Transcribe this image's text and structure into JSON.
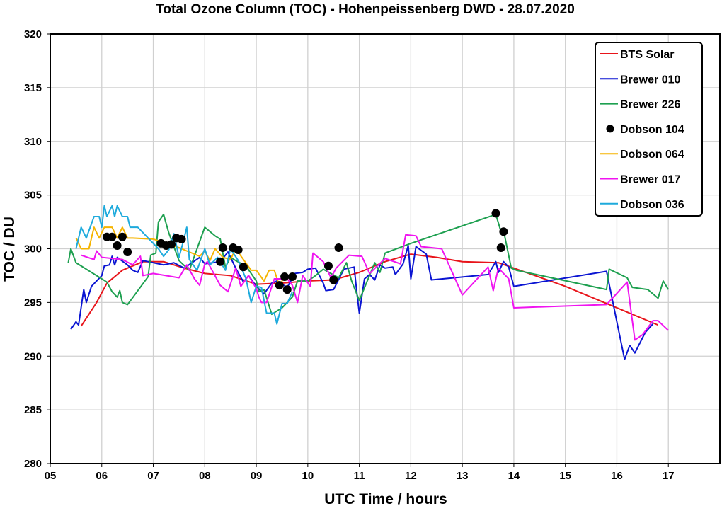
{
  "chart_data": {
    "type": "line",
    "title": "Total Ozone Column (TOC) - Hohenpeissenberg DWD - 28.07.2020",
    "xlabel": "UTC Time / hours",
    "ylabel": "TOC / DU",
    "xlim": [
      5,
      18
    ],
    "ylim": [
      280,
      320
    ],
    "xticks": [
      "05",
      "06",
      "07",
      "08",
      "09",
      "10",
      "11",
      "12",
      "13",
      "14",
      "15",
      "16",
      "17"
    ],
    "yticks": [
      "280",
      "285",
      "290",
      "295",
      "300",
      "305",
      "310",
      "315",
      "320"
    ],
    "grid": true,
    "legend_position": "top-right",
    "series": [
      {
        "name": "BTS Solar",
        "color": "#e8141a",
        "style": "line",
        "points": [
          [
            5.6,
            292.8
          ],
          [
            5.9,
            295
          ],
          [
            6.1,
            296.8
          ],
          [
            6.4,
            298
          ],
          [
            6.8,
            298.8
          ],
          [
            7.2,
            298.8
          ],
          [
            7.6,
            298.2
          ],
          [
            8.0,
            297.7
          ],
          [
            8.5,
            297.5
          ],
          [
            9.0,
            296.7
          ],
          [
            9.5,
            296.8
          ],
          [
            10.0,
            297.0
          ],
          [
            10.5,
            297.1
          ],
          [
            11.0,
            297.8
          ],
          [
            11.5,
            298.8
          ],
          [
            12.0,
            299.5
          ],
          [
            12.5,
            299.2
          ],
          [
            13.0,
            298.8
          ],
          [
            13.7,
            298.7
          ],
          [
            14.0,
            298.2
          ],
          [
            15.0,
            296.5
          ],
          [
            16.0,
            294.5
          ],
          [
            16.8,
            292.9
          ]
        ]
      },
      {
        "name": "Brewer 010",
        "color": "#0a14d2",
        "style": "line",
        "points": [
          [
            5.4,
            292.5
          ],
          [
            5.5,
            293.2
          ],
          [
            5.55,
            292.9
          ],
          [
            5.65,
            296.2
          ],
          [
            5.7,
            295
          ],
          [
            5.8,
            296.5
          ],
          [
            6.0,
            297.5
          ],
          [
            6.05,
            298.4
          ],
          [
            6.15,
            298.5
          ],
          [
            6.2,
            299.3
          ],
          [
            6.25,
            298.5
          ],
          [
            6.3,
            299.2
          ],
          [
            6.5,
            298.5
          ],
          [
            6.6,
            298
          ],
          [
            6.7,
            297.8
          ],
          [
            6.8,
            298.9
          ],
          [
            7.2,
            298.5
          ],
          [
            7.4,
            298.7
          ],
          [
            7.6,
            298.2
          ],
          [
            7.9,
            299.2
          ],
          [
            8.0,
            298.6
          ],
          [
            8.3,
            298.8
          ],
          [
            8.45,
            299.7
          ],
          [
            8.6,
            298.2
          ],
          [
            8.75,
            296.9
          ],
          [
            8.85,
            297.5
          ],
          [
            9.0,
            296.5
          ],
          [
            9.15,
            295.8
          ],
          [
            9.3,
            296.8
          ],
          [
            9.4,
            297
          ],
          [
            9.6,
            296.4
          ],
          [
            9.75,
            297.7
          ],
          [
            9.9,
            297.8
          ],
          [
            10.0,
            298.1
          ],
          [
            10.15,
            298.2
          ],
          [
            10.3,
            296.8
          ],
          [
            10.35,
            296.1
          ],
          [
            10.5,
            296.2
          ],
          [
            10.7,
            298.1
          ],
          [
            10.9,
            298.3
          ],
          [
            10.95,
            296
          ],
          [
            11.0,
            294
          ],
          [
            11.1,
            297.2
          ],
          [
            11.2,
            297.6
          ],
          [
            11.3,
            297.1
          ],
          [
            11.4,
            298.5
          ],
          [
            11.5,
            298.2
          ],
          [
            11.65,
            298.3
          ],
          [
            11.7,
            297.6
          ],
          [
            11.85,
            298.6
          ],
          [
            11.95,
            300.3
          ],
          [
            12.0,
            297.2
          ],
          [
            12.1,
            300.2
          ],
          [
            12.3,
            299.5
          ],
          [
            12.4,
            297.1
          ],
          [
            13.5,
            297.6
          ],
          [
            13.65,
            298.8
          ],
          [
            13.7,
            297.8
          ],
          [
            13.8,
            298.8
          ],
          [
            13.9,
            298.3
          ],
          [
            14.0,
            296.5
          ],
          [
            15.8,
            297.9
          ],
          [
            16.0,
            293.2
          ],
          [
            16.15,
            289.7
          ],
          [
            16.25,
            291
          ],
          [
            16.35,
            290.3
          ],
          [
            16.55,
            292.2
          ],
          [
            16.7,
            293
          ]
        ]
      },
      {
        "name": "Brewer 226",
        "color": "#1ea050",
        "style": "line",
        "points": [
          [
            5.35,
            298.7
          ],
          [
            5.4,
            300
          ],
          [
            5.5,
            298.7
          ],
          [
            5.8,
            297.8
          ],
          [
            6.1,
            296.9
          ],
          [
            6.2,
            296
          ],
          [
            6.3,
            295.5
          ],
          [
            6.35,
            296.1
          ],
          [
            6.4,
            295
          ],
          [
            6.5,
            294.8
          ],
          [
            6.9,
            297.4
          ],
          [
            6.95,
            299.4
          ],
          [
            7.05,
            299.6
          ],
          [
            7.1,
            302.5
          ],
          [
            7.2,
            303.2
          ],
          [
            7.3,
            301.5
          ],
          [
            7.5,
            298.9
          ],
          [
            7.7,
            298
          ],
          [
            8.0,
            302
          ],
          [
            8.2,
            301.2
          ],
          [
            8.3,
            300.9
          ],
          [
            8.4,
            298.3
          ],
          [
            8.5,
            299.2
          ],
          [
            8.6,
            298.9
          ],
          [
            8.8,
            298.4
          ],
          [
            9.0,
            297
          ],
          [
            9.05,
            296
          ],
          [
            9.15,
            296.2
          ],
          [
            9.3,
            293.9
          ],
          [
            9.5,
            294.5
          ],
          [
            9.7,
            295.5
          ],
          [
            9.8,
            297
          ],
          [
            10.0,
            297
          ],
          [
            10.15,
            297.5
          ],
          [
            10.3,
            298.1
          ],
          [
            10.6,
            297.3
          ],
          [
            10.75,
            298.7
          ],
          [
            10.85,
            297
          ],
          [
            11.0,
            295.2
          ],
          [
            11.3,
            298.7
          ],
          [
            11.4,
            297.8
          ],
          [
            11.5,
            299.6
          ],
          [
            12.0,
            300.5
          ],
          [
            13.65,
            303.2
          ],
          [
            13.75,
            301.6
          ],
          [
            13.8,
            301.7
          ],
          [
            13.95,
            298.2
          ],
          [
            14.05,
            298
          ],
          [
            15.8,
            296.2
          ],
          [
            15.85,
            298.1
          ],
          [
            16.2,
            297.3
          ],
          [
            16.3,
            296.4
          ],
          [
            16.6,
            296.2
          ],
          [
            16.8,
            295.4
          ],
          [
            16.9,
            297.0
          ],
          [
            17.0,
            296.2
          ]
        ]
      },
      {
        "name": "Dobson 104",
        "color": "#000000",
        "style": "marker",
        "points": [
          [
            6.1,
            301.1
          ],
          [
            6.2,
            301.1
          ],
          [
            6.3,
            300.3
          ],
          [
            6.4,
            301.1
          ],
          [
            6.5,
            299.7
          ],
          [
            7.15,
            300.5
          ],
          [
            7.25,
            300.3
          ],
          [
            7.35,
            300.4
          ],
          [
            7.45,
            301
          ],
          [
            7.55,
            300.9
          ],
          [
            8.3,
            298.8
          ],
          [
            8.35,
            300.1
          ],
          [
            8.55,
            300.1
          ],
          [
            8.65,
            299.9
          ],
          [
            8.75,
            298.3
          ],
          [
            9.45,
            296.6
          ],
          [
            9.55,
            297.4
          ],
          [
            9.6,
            296.2
          ],
          [
            9.7,
            297.4
          ],
          [
            10.4,
            298.4
          ],
          [
            10.5,
            297.1
          ],
          [
            10.6,
            300.1
          ],
          [
            13.65,
            303.3
          ],
          [
            13.75,
            300.1
          ],
          [
            13.8,
            301.6
          ]
        ]
      },
      {
        "name": "Dobson 064",
        "color": "#f5b400",
        "style": "line",
        "points": [
          [
            5.5,
            301
          ],
          [
            5.6,
            300
          ],
          [
            5.75,
            300
          ],
          [
            5.85,
            302
          ],
          [
            5.95,
            301
          ],
          [
            6.05,
            302
          ],
          [
            6.2,
            302
          ],
          [
            6.3,
            301
          ],
          [
            6.4,
            302
          ],
          [
            6.5,
            301
          ],
          [
            6.6,
            301
          ],
          [
            7.0,
            300.9
          ],
          [
            7.5,
            300.1
          ],
          [
            7.9,
            299.3
          ],
          [
            8.0,
            299.8
          ],
          [
            8.1,
            298.9
          ],
          [
            8.2,
            300
          ],
          [
            8.35,
            299.2
          ],
          [
            8.5,
            299
          ],
          [
            8.6,
            300
          ],
          [
            8.75,
            299
          ],
          [
            8.9,
            298
          ],
          [
            9.0,
            298
          ],
          [
            9.15,
            297
          ],
          [
            9.25,
            298
          ],
          [
            9.35,
            298
          ],
          [
            9.45,
            296.5
          ],
          [
            9.55,
            297.5
          ],
          [
            9.6,
            297.5
          ]
        ]
      },
      {
        "name": "Brewer 017",
        "color": "#f014f0",
        "style": "line",
        "points": [
          [
            5.6,
            299.4
          ],
          [
            5.85,
            299
          ],
          [
            5.9,
            299.8
          ],
          [
            6.0,
            299.2
          ],
          [
            6.4,
            299
          ],
          [
            6.6,
            298.5
          ],
          [
            6.75,
            299.3
          ],
          [
            6.8,
            297.5
          ],
          [
            7.0,
            297.7
          ],
          [
            7.5,
            297.3
          ],
          [
            7.65,
            298.5
          ],
          [
            7.8,
            297.2
          ],
          [
            7.9,
            296.6
          ],
          [
            8.0,
            298.6
          ],
          [
            8.05,
            298.8
          ],
          [
            8.3,
            296.6
          ],
          [
            8.45,
            296
          ],
          [
            8.6,
            298.2
          ],
          [
            8.7,
            296.5
          ],
          [
            8.85,
            297.5
          ],
          [
            9.0,
            296.3
          ],
          [
            9.05,
            295.5
          ],
          [
            9.1,
            295
          ],
          [
            9.2,
            295
          ],
          [
            9.35,
            297.2
          ],
          [
            9.6,
            297.2
          ],
          [
            9.7,
            296.6
          ],
          [
            9.8,
            295
          ],
          [
            9.9,
            297.5
          ],
          [
            10.05,
            296.5
          ],
          [
            10.1,
            299.6
          ],
          [
            10.3,
            298.8
          ],
          [
            10.45,
            297.3
          ],
          [
            10.55,
            298.2
          ],
          [
            10.8,
            299.4
          ],
          [
            11.05,
            299.3
          ],
          [
            11.2,
            297.7
          ],
          [
            11.5,
            299.1
          ],
          [
            11.8,
            298.6
          ],
          [
            11.9,
            301.3
          ],
          [
            12.1,
            301.2
          ],
          [
            12.2,
            300.2
          ],
          [
            12.6,
            300
          ],
          [
            13.0,
            295.7
          ],
          [
            13.5,
            298.3
          ],
          [
            13.6,
            296.1
          ],
          [
            13.7,
            298.2
          ],
          [
            13.9,
            297.2
          ],
          [
            14.0,
            294.5
          ],
          [
            15.8,
            294.8
          ],
          [
            16.2,
            296.9
          ],
          [
            16.35,
            291.5
          ],
          [
            16.5,
            292
          ],
          [
            16.7,
            293.3
          ],
          [
            16.8,
            293.3
          ],
          [
            17.0,
            292.4
          ]
        ]
      },
      {
        "name": "Dobson 036",
        "color": "#1eaadc",
        "style": "line",
        "points": [
          [
            5.5,
            300
          ],
          [
            5.6,
            302
          ],
          [
            5.7,
            301
          ],
          [
            5.85,
            303
          ],
          [
            5.95,
            303
          ],
          [
            6.0,
            302
          ],
          [
            6.05,
            304
          ],
          [
            6.1,
            303
          ],
          [
            6.2,
            304
          ],
          [
            6.25,
            303
          ],
          [
            6.3,
            304
          ],
          [
            6.4,
            303
          ],
          [
            6.5,
            303
          ],
          [
            6.55,
            302
          ],
          [
            6.7,
            302
          ],
          [
            6.9,
            301
          ],
          [
            7.1,
            300
          ],
          [
            7.2,
            299.3
          ],
          [
            7.3,
            299.9
          ],
          [
            7.4,
            301.4
          ],
          [
            7.5,
            299.2
          ],
          [
            7.6,
            301
          ],
          [
            7.65,
            302
          ],
          [
            7.7,
            299
          ],
          [
            7.85,
            298
          ],
          [
            8.0,
            300
          ],
          [
            8.1,
            298.5
          ],
          [
            8.25,
            299.2
          ],
          [
            8.4,
            298
          ],
          [
            8.5,
            300
          ],
          [
            8.65,
            298.9
          ],
          [
            8.8,
            297.2
          ],
          [
            8.9,
            295
          ],
          [
            9.0,
            296.5
          ],
          [
            9.1,
            296.4
          ],
          [
            9.2,
            294
          ],
          [
            9.35,
            294
          ],
          [
            9.4,
            293
          ],
          [
            9.5,
            294.9
          ],
          [
            9.6,
            294.9
          ],
          [
            9.7,
            296
          ]
        ]
      }
    ]
  }
}
